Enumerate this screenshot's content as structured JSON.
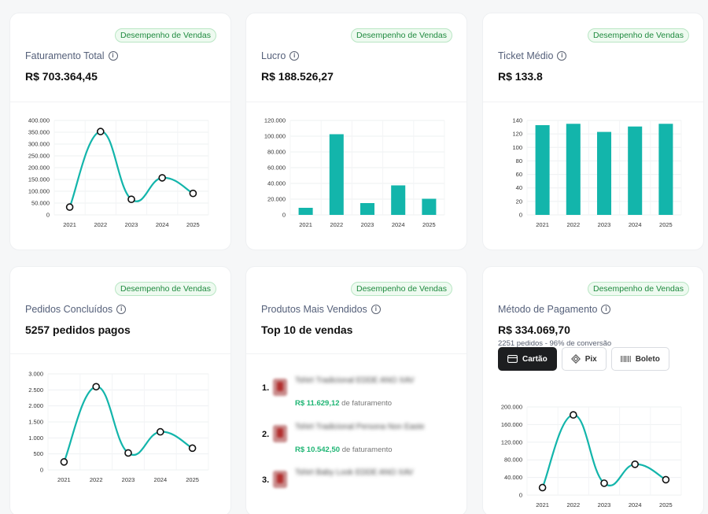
{
  "badge_label": "Desempenho de Vendas",
  "info_glyph": "i",
  "cards": {
    "faturamento": {
      "title": "Faturamento Total",
      "value": "R$ 703.364,45"
    },
    "lucro": {
      "title": "Lucro",
      "value": "R$ 188.526,27"
    },
    "ticket": {
      "title": "Ticket Médio",
      "value": "R$ 133.8"
    },
    "pedidos": {
      "title": "Pedidos Concluídos",
      "value": "5257 pedidos pagos"
    },
    "produtos": {
      "title": "Produtos Mais Vendidos",
      "value": "Top 10 de vendas",
      "revenue_suffix": "de faturamento",
      "items": [
        {
          "rank": "1.",
          "name": "Tshirt Tradicional EDDE ANO XAV",
          "revenue": "R$ 11.629,12"
        },
        {
          "rank": "2.",
          "name": "Tshirt Tradicional Persona Non Easte",
          "revenue": "R$ 10.542,50"
        },
        {
          "rank": "3.",
          "name": "Tshirt Baby Look EDDE ANO XAV",
          "revenue": ""
        }
      ]
    },
    "metodo": {
      "title": "Método de Pagamento",
      "value": "R$ 334.069,70",
      "subtitle": "2251 pedidos - 96% de conversão",
      "buttons": [
        {
          "label": "Cartão",
          "icon": "credit-card-icon"
        },
        {
          "label": "Pix",
          "icon": "pix-icon"
        },
        {
          "label": "Boleto",
          "icon": "barcode-icon"
        }
      ]
    }
  },
  "chart_data": [
    {
      "type": "line",
      "x": [
        "2021",
        "2022",
        "2023",
        "2024",
        "2025"
      ],
      "values": [
        33000,
        353000,
        66000,
        157000,
        91000
      ],
      "ylim": [
        0,
        400000
      ],
      "yticks": [
        0,
        50000,
        100000,
        150000,
        200000,
        250000,
        300000,
        350000,
        400000
      ],
      "ytick_labels": [
        "0",
        "50.000",
        "100.000",
        "150.000",
        "200.000",
        "250.000",
        "300.000",
        "350.000",
        "400.000"
      ],
      "color": "#13b5ab"
    },
    {
      "type": "bar",
      "categories": [
        "2021",
        "2022",
        "2023",
        "2024",
        "2025"
      ],
      "values": [
        9000,
        102500,
        15000,
        37500,
        20500
      ],
      "ylim": [
        0,
        120000
      ],
      "yticks": [
        0,
        20000,
        40000,
        60000,
        80000,
        100000,
        120000
      ],
      "ytick_labels": [
        "0",
        "20.000",
        "40.000",
        "60.000",
        "80.000",
        "100.000",
        "120.000"
      ],
      "color": "#13b5ab"
    },
    {
      "type": "bar",
      "categories": [
        "2021",
        "2022",
        "2023",
        "2024",
        "2025"
      ],
      "values": [
        133,
        135,
        123,
        131,
        135
      ],
      "ylim": [
        0,
        140
      ],
      "yticks": [
        0,
        20,
        40,
        60,
        80,
        100,
        120,
        140
      ],
      "ytick_labels": [
        "0",
        "20",
        "40",
        "60",
        "80",
        "100",
        "120",
        "140"
      ],
      "color": "#13b5ab"
    },
    {
      "type": "line",
      "x": [
        "2021",
        "2022",
        "2023",
        "2024",
        "2025"
      ],
      "values": [
        250,
        2600,
        530,
        1190,
        680
      ],
      "ylim": [
        0,
        3000
      ],
      "yticks": [
        0,
        500,
        1000,
        1500,
        2000,
        2500,
        3000
      ],
      "ytick_labels": [
        "0",
        "500",
        "1.000",
        "1.500",
        "2.000",
        "2.500",
        "3.000"
      ],
      "color": "#13b5ab"
    },
    {
      "type": "line",
      "x": [
        "2021",
        "2022",
        "2023",
        "2024",
        "2025"
      ],
      "values": [
        17000,
        182000,
        27000,
        70000,
        35000
      ],
      "ylim": [
        0,
        200000
      ],
      "yticks": [
        0,
        40000,
        80000,
        120000,
        160000,
        200000
      ],
      "ytick_labels": [
        "0",
        "40.000",
        "80.000",
        "120.000",
        "160.000",
        "200.000"
      ],
      "color": "#13b5ab"
    }
  ]
}
